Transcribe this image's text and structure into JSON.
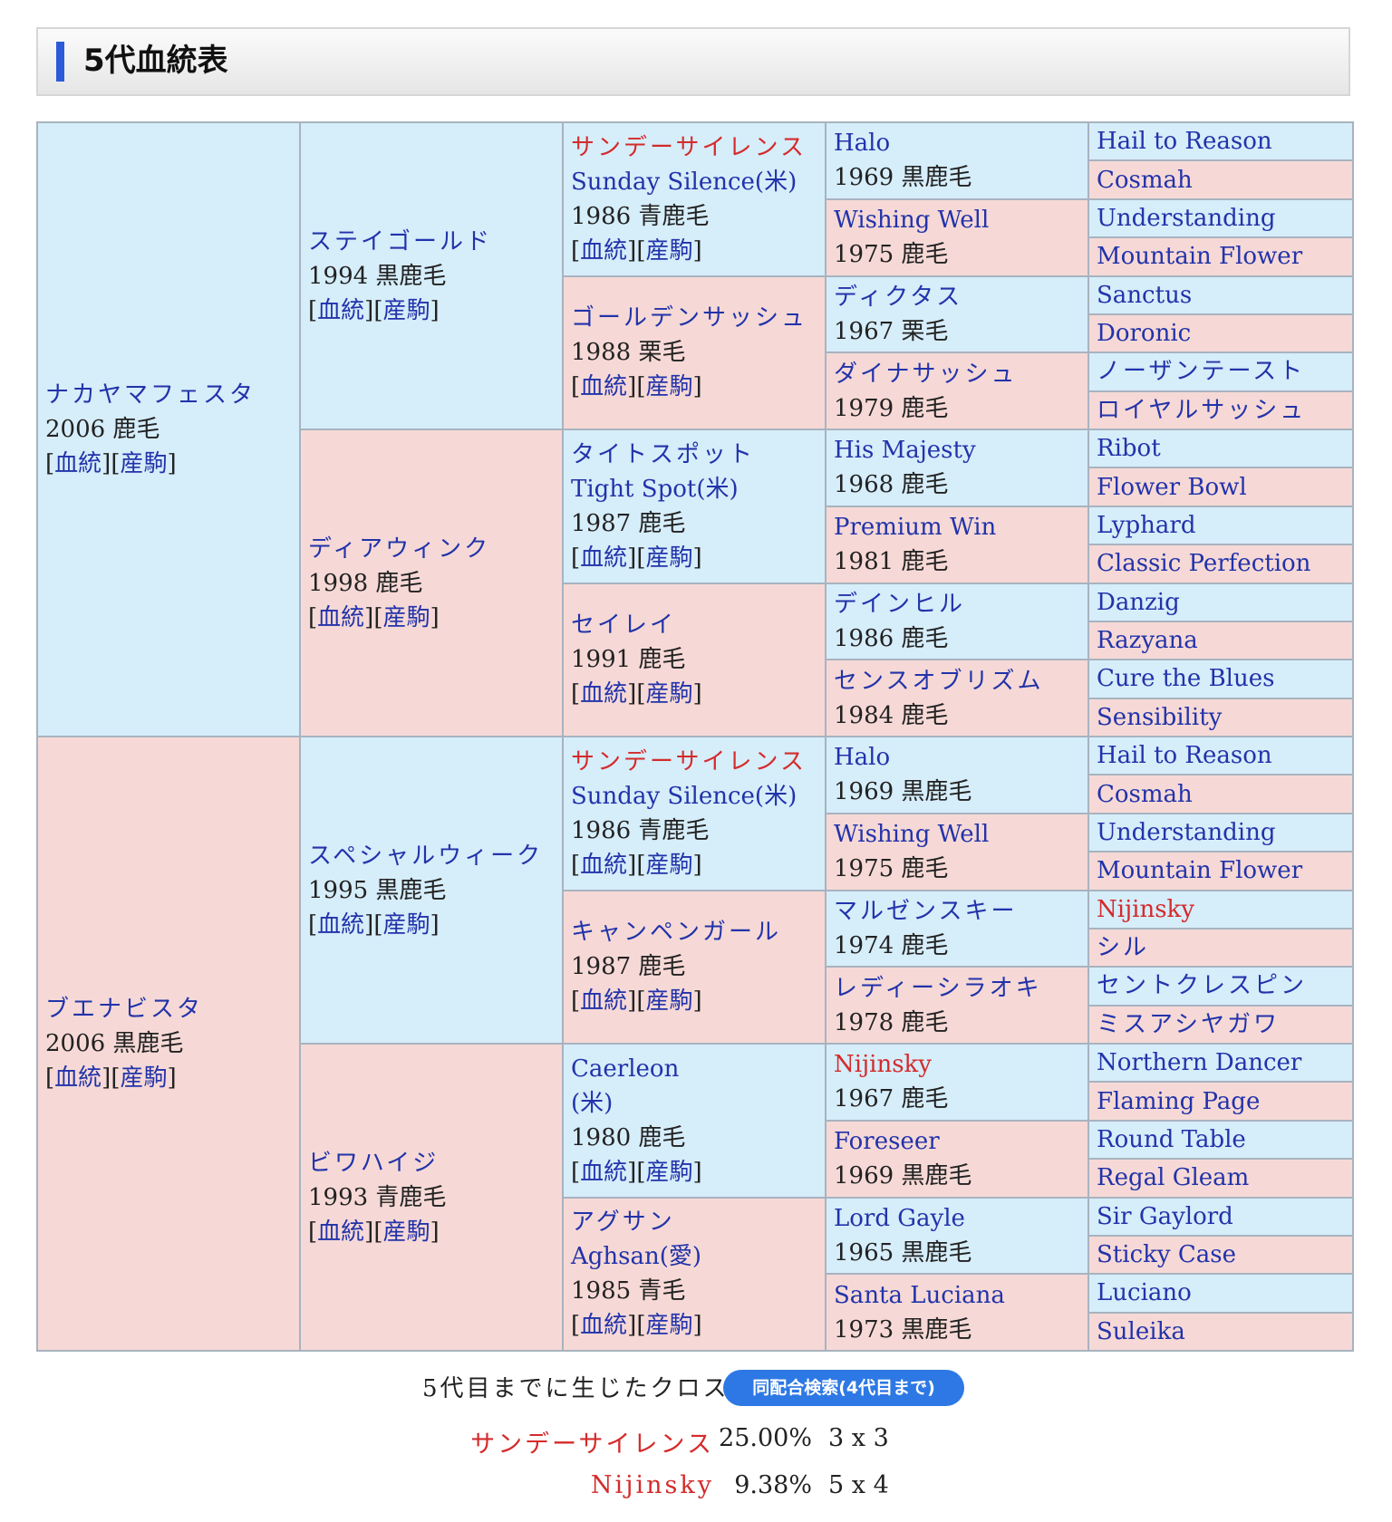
{
  "section_title": "5代血統表",
  "link_labels": {
    "pedigree": "血統",
    "offspring": "産駒"
  },
  "colors": {
    "blue_cell": "#d6edfa",
    "pink_cell": "#f6d9d6",
    "link": "#2233aa",
    "highlight": "#d42b2b",
    "button": "#2d78e4"
  },
  "pedigree": {
    "g1": [
      {
        "name": "ナカヤマフェスタ",
        "info": "2006 鹿毛"
      },
      {
        "name": "ブエナビスタ",
        "info": "2006 黒鹿毛"
      }
    ],
    "g2": [
      {
        "name": "ステイゴールド",
        "info": "1994 黒鹿毛"
      },
      {
        "name": "ディアウィンク",
        "info": "1998 鹿毛"
      },
      {
        "name": "スペシャルウィーク",
        "info": "1995 黒鹿毛"
      },
      {
        "name": "ビワハイジ",
        "info": "1993 青鹿毛"
      }
    ],
    "g3": [
      {
        "name": "サンデーサイレンス",
        "name2": "Sunday Silence(米)",
        "info": "1986 青鹿毛"
      },
      {
        "name": "ゴールデンサッシュ",
        "info": "1988 栗毛"
      },
      {
        "name": "タイトスポット",
        "name2": "Tight Spot(米)",
        "info": "1987 鹿毛"
      },
      {
        "name": "セイレイ",
        "info": "1991 鹿毛"
      },
      {
        "name": "サンデーサイレンス",
        "name2": "Sunday Silence(米)",
        "info": "1986 青鹿毛"
      },
      {
        "name": "キャンペンガール",
        "info": "1987 鹿毛"
      },
      {
        "name": "Caerleon",
        "name2": "(米)",
        "info": "1980 鹿毛"
      },
      {
        "name": "アグサン",
        "name2": "Aghsan(愛)",
        "info": "1985 青毛"
      }
    ],
    "g4": [
      {
        "name": "Halo",
        "info": "1969 黒鹿毛"
      },
      {
        "name": "Wishing Well",
        "info": "1975 鹿毛"
      },
      {
        "name": "ディクタス",
        "info": "1967 栗毛"
      },
      {
        "name": "ダイナサッシュ",
        "info": "1979 鹿毛"
      },
      {
        "name": "His Majesty",
        "info": "1968 鹿毛"
      },
      {
        "name": "Premium Win",
        "info": "1981 鹿毛"
      },
      {
        "name": "デインヒル",
        "info": "1986 鹿毛"
      },
      {
        "name": "センスオブリズム",
        "info": "1984 鹿毛"
      },
      {
        "name": "Halo",
        "info": "1969 黒鹿毛"
      },
      {
        "name": "Wishing Well",
        "info": "1975 鹿毛"
      },
      {
        "name": "マルゼンスキー",
        "info": "1974 鹿毛"
      },
      {
        "name": "レディーシラオキ",
        "info": "1978 鹿毛"
      },
      {
        "name": "Nijinsky",
        "info": "1967 鹿毛"
      },
      {
        "name": "Foreseer",
        "info": "1969 黒鹿毛"
      },
      {
        "name": "Lord Gayle",
        "info": "1965 黒鹿毛"
      },
      {
        "name": "Santa Luciana",
        "info": "1973 黒鹿毛"
      }
    ],
    "g5": [
      "Hail to Reason",
      "Cosmah",
      "Understanding",
      "Mountain Flower",
      "Sanctus",
      "Doronic",
      "ノーザンテースト",
      "ロイヤルサッシュ",
      "Ribot",
      "Flower Bowl",
      "Lyphard",
      "Classic Perfection",
      "Danzig",
      "Razyana",
      "Cure the Blues",
      "Sensibility",
      "Hail to Reason",
      "Cosmah",
      "Understanding",
      "Mountain Flower",
      "Nijinsky",
      "シル",
      "セントクレスピン",
      "ミスアシヤガワ",
      "Northern Dancer",
      "Flaming Page",
      "Round Table",
      "Regal Gleam",
      "Sir Gaylord",
      "Sticky Case",
      "Luciano",
      "Suleika"
    ]
  },
  "crosses": {
    "label": "5代目までに生じたクロス",
    "search_button": "同配合検索(4代目まで)",
    "items": [
      {
        "name": "サンデーサイレンス",
        "percent": "25.00%",
        "generations": "3 x 3"
      },
      {
        "name": "Nijinsky",
        "percent": "9.38%",
        "generations": "5 x 4"
      }
    ]
  }
}
